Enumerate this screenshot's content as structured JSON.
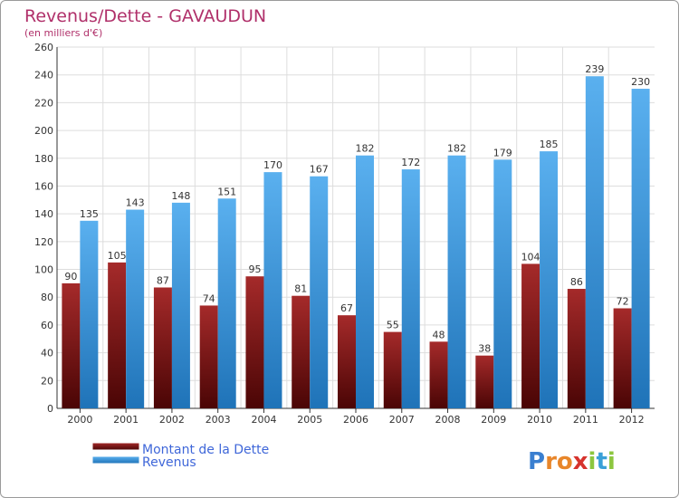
{
  "chart_data": {
    "type": "bar",
    "title": "Revenus/Dette - GAVAUDUN",
    "subtitle": "(en milliers d'€)",
    "categories": [
      "2000",
      "2001",
      "2002",
      "2003",
      "2004",
      "2005",
      "2006",
      "2007",
      "2008",
      "2009",
      "2010",
      "2011",
      "2012"
    ],
    "series": [
      {
        "name": "Montant de la Dette",
        "color": "#8b1a1a",
        "values": [
          90,
          105,
          87,
          74,
          95,
          81,
          67,
          55,
          48,
          38,
          104,
          86,
          72
        ]
      },
      {
        "name": "Revenus",
        "color": "#4aa3e6",
        "values": [
          135,
          143,
          148,
          151,
          170,
          167,
          182,
          172,
          182,
          179,
          185,
          239,
          230
        ]
      }
    ],
    "ylim": [
      0,
      260
    ],
    "yticks": [
      0,
      20,
      40,
      60,
      80,
      100,
      120,
      140,
      160,
      180,
      200,
      220,
      240,
      260
    ],
    "grid": true,
    "legend_position": "bottom-left"
  },
  "logo": {
    "letters": [
      {
        "char": "P",
        "color": "#3a7fd0"
      },
      {
        "char": "r",
        "color": "#e8862a"
      },
      {
        "char": "o",
        "color": "#e8862a"
      },
      {
        "char": "x",
        "color": "#d6332d"
      },
      {
        "char": "i",
        "color": "#8cc63f"
      },
      {
        "char": "t",
        "color": "#3aa0d8"
      },
      {
        "char": "i",
        "color": "#8cc63f"
      }
    ]
  }
}
